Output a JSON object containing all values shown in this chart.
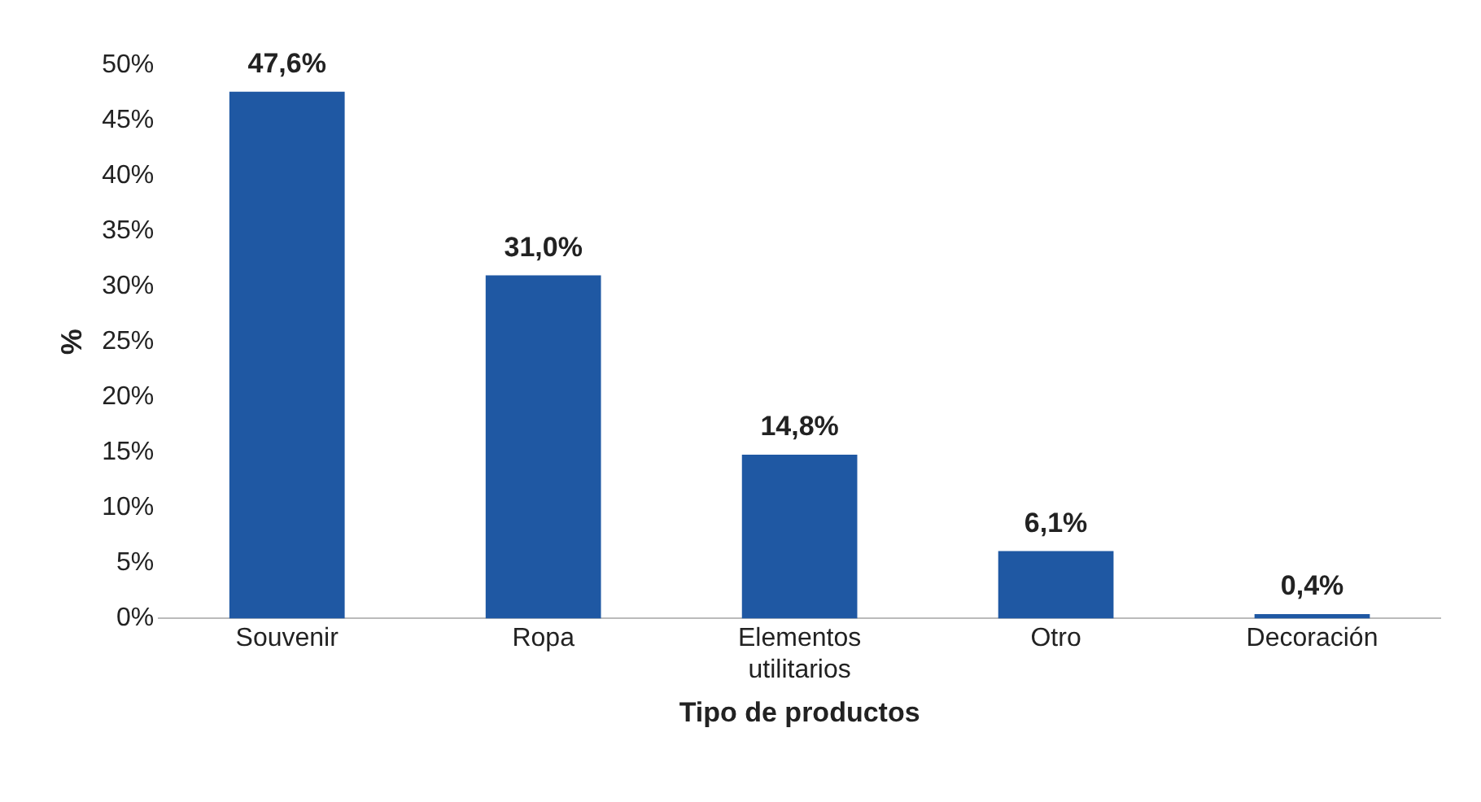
{
  "chart_data": {
    "type": "bar",
    "xlabel": "Tipo de productos",
    "ylabel": "%",
    "categories": [
      "Souvenir",
      "Ropa",
      "Elementos utilitarios",
      "Otro",
      "Decoración"
    ],
    "values": [
      47.6,
      31.0,
      14.8,
      6.1,
      0.4
    ],
    "value_labels": [
      "47,6%",
      "31,0%",
      "14,8%",
      "6,1%",
      "0,4%"
    ],
    "color": "#1f58a3",
    "ylim": [
      0,
      50
    ],
    "yticks": [
      {
        "value": 0,
        "label": "0%"
      },
      {
        "value": 5,
        "label": "5%"
      },
      {
        "value": 10,
        "label": "10%"
      },
      {
        "value": 15,
        "label": "15%"
      },
      {
        "value": 20,
        "label": "20%"
      },
      {
        "value": 25,
        "label": "25%"
      },
      {
        "value": 30,
        "label": "30%"
      },
      {
        "value": 35,
        "label": "35%"
      },
      {
        "value": 40,
        "label": "40%"
      },
      {
        "value": 45,
        "label": "45%"
      },
      {
        "value": 50,
        "label": "50%"
      }
    ],
    "grid": false,
    "legend": false
  }
}
